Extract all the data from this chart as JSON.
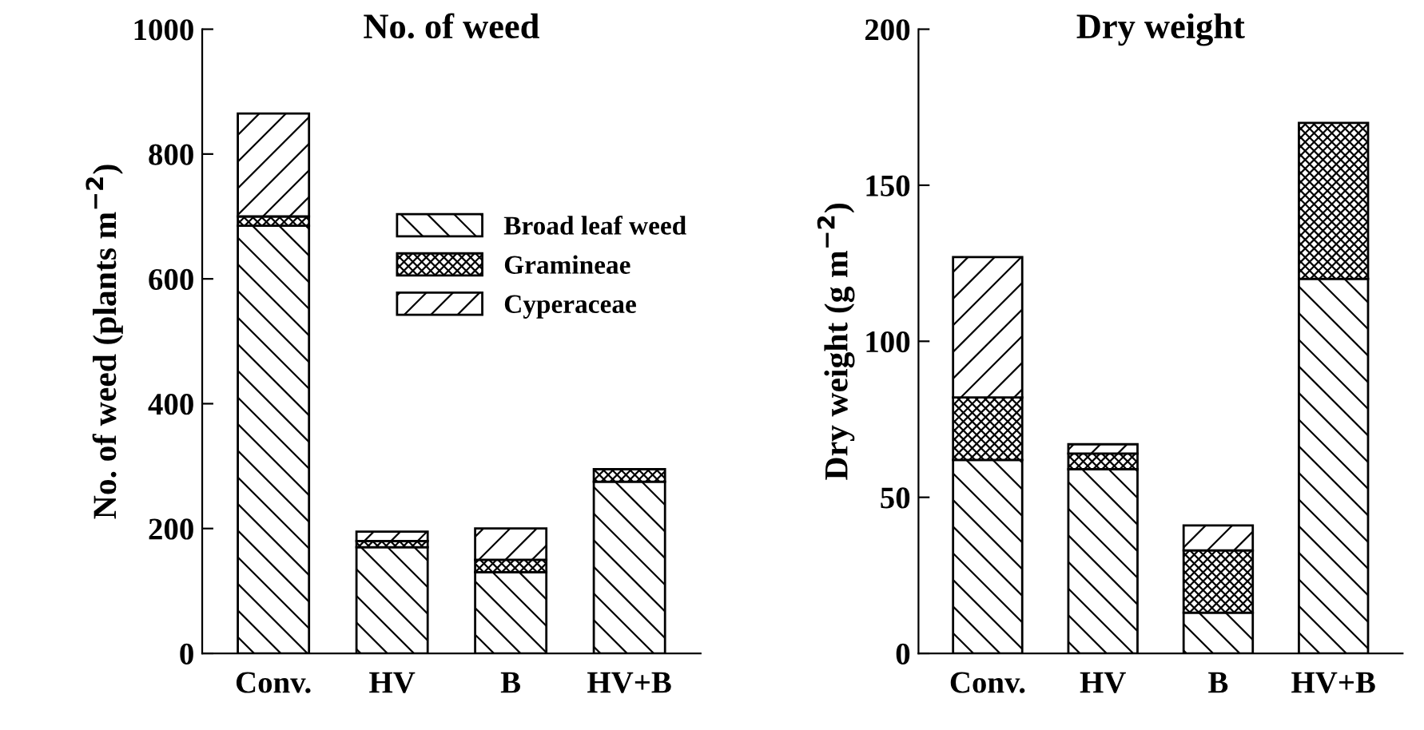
{
  "chart_data": [
    {
      "type": "bar",
      "stacked": true,
      "title": "No. of weed",
      "ylabel": "No. of weed (plants m$^{−2}$)",
      "categories": [
        "Conv.",
        "HV",
        "B",
        "HV+B"
      ],
      "ylim": [
        0,
        1000
      ],
      "yticks": [
        0,
        200,
        400,
        600,
        800,
        1000
      ],
      "legend": "center right",
      "grid": false,
      "series": [
        {
          "name": "Broad leaf weed",
          "color": "#000000",
          "values": [
            685,
            170,
            130,
            275
          ]
        },
        {
          "name": "Gramineae",
          "color": "#000000",
          "values": [
            15,
            10,
            20,
            20
          ]
        },
        {
          "name": "Cyperaceae",
          "color": "#000000",
          "values": [
            165,
            15,
            50,
            null
          ]
        }
      ]
    },
    {
      "type": "bar",
      "stacked": true,
      "title": "Dry weight",
      "ylabel": "Dry weight (g m$^{−2}$)",
      "categories": [
        "Conv.",
        "HV",
        "B",
        "HV+B"
      ],
      "ylim": [
        0,
        200
      ],
      "yticks": [
        0,
        50,
        100,
        150,
        200
      ],
      "grid": false,
      "series": [
        {
          "color": "#000000",
          "values": [
            62,
            59,
            13,
            120
          ]
        },
        {
          "color": "#000000",
          "values": [
            20,
            5,
            20,
            50
          ]
        },
        {
          "color": "#000000",
          "values": [
            45,
            3,
            8,
            null
          ]
        }
      ]
    }
  ]
}
